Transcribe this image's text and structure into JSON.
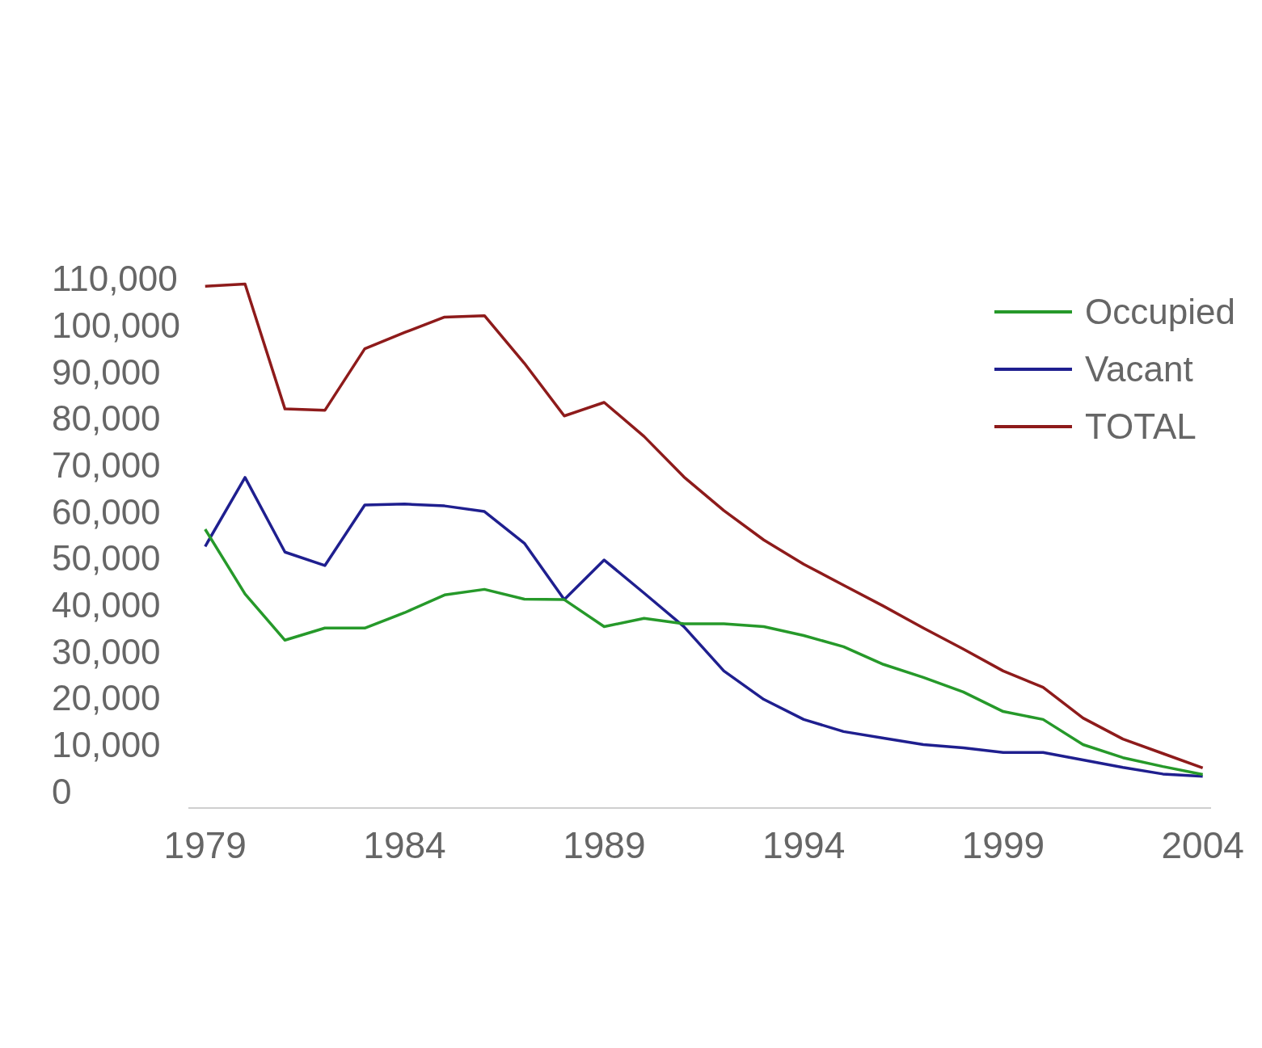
{
  "chart_data": {
    "type": "line",
    "x": [
      1979,
      1980,
      1981,
      1982,
      1983,
      1984,
      1985,
      1986,
      1987,
      1988,
      1989,
      1990,
      1991,
      1992,
      1993,
      1994,
      1995,
      1996,
      1997,
      1998,
      1999,
      2000,
      2001,
      2002,
      2003,
      2004
    ],
    "xlim": [
      1978.6,
      2004.2
    ],
    "xticks": [
      1979,
      1984,
      1989,
      1994,
      1999,
      2004
    ],
    "ylim": [
      -3000,
      110000
    ],
    "yticks": [
      {
        "value": 0,
        "label": "0"
      },
      {
        "value": 10000,
        "label": "10,000"
      },
      {
        "value": 20000,
        "label": "20,000"
      },
      {
        "value": 30000,
        "label": "30,000"
      },
      {
        "value": 40000,
        "label": "40,000"
      },
      {
        "value": 50000,
        "label": "50,000"
      },
      {
        "value": 60000,
        "label": "60,000"
      },
      {
        "value": 70000,
        "label": "70,000"
      },
      {
        "value": 80000,
        "label": "80,000"
      },
      {
        "value": 90000,
        "label": "90,000"
      },
      {
        "value": 100000,
        "label": "100,000"
      },
      {
        "value": 110000,
        "label": "110,000"
      }
    ],
    "grid": false,
    "legend": "right",
    "marker": "none",
    "line_style": "solid",
    "series": [
      {
        "name": "Occupied",
        "color": "#26992a",
        "values": [
          56800,
          42900,
          33000,
          35600,
          35600,
          38900,
          42700,
          43900,
          41800,
          41700,
          35900,
          37700,
          36500,
          36500,
          35900,
          34000,
          31600,
          27800,
          25000,
          21900,
          17700,
          16000,
          10600,
          7800,
          5900,
          4200
        ]
      },
      {
        "name": "Vacant",
        "color": "#1f1f8f",
        "values": [
          53100,
          67900,
          51900,
          49000,
          62000,
          62200,
          61800,
          60600,
          53800,
          41700,
          50200,
          43100,
          35900,
          26400,
          20300,
          16000,
          13400,
          12000,
          10600,
          9900,
          8900,
          8900,
          7300,
          5700,
          4300,
          3800
        ]
      },
      {
        "name": "TOTAL",
        "color": "#8e1b1b",
        "values": [
          108900,
          109400,
          82600,
          82300,
          95500,
          99000,
          102300,
          102600,
          92400,
          81100,
          84000,
          76700,
          68000,
          60800,
          54500,
          49300,
          44800,
          40300,
          35600,
          31100,
          26400,
          22900,
          16300,
          11800,
          8700,
          5600
        ]
      }
    ]
  }
}
